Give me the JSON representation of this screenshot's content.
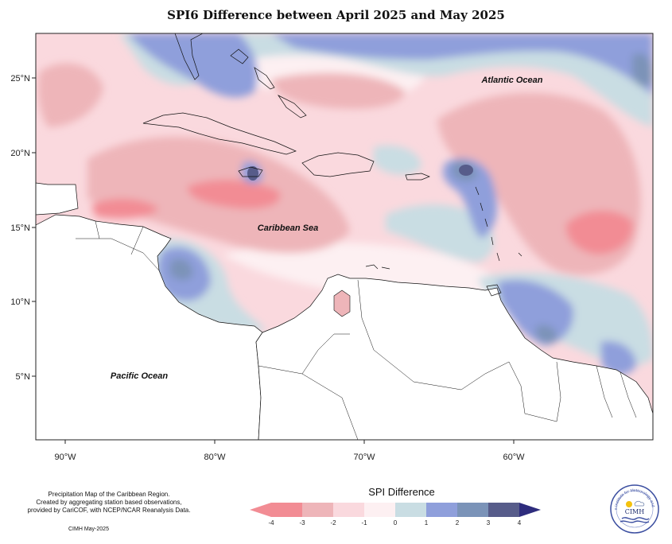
{
  "title": "SPI6 Difference between April 2025 and May 2025",
  "ocean_labels": {
    "atlantic": "Atlantic Ocean",
    "caribbean": "Caribbean Sea",
    "pacific": "Pacific Ocean"
  },
  "axes": {
    "lat_labels": [
      "25°N",
      "20°N",
      "15°N",
      "10°N",
      "5°N"
    ],
    "lon_labels": [
      "90°W",
      "80°W",
      "70°W",
      "60°W"
    ]
  },
  "credit_lines": [
    "Precipitation Map of the Caribbean Region.",
    "Created by aggregating station based observations,",
    "provided by CariCOF, with NCEP/NCAR Reanalysis Data."
  ],
  "date_stamp": "CIMH May-2025",
  "legend": {
    "title": "SPI Difference",
    "ticks": [
      "-4",
      "-3",
      "-2",
      "-1",
      "0",
      "1",
      "2",
      "3",
      "4"
    ],
    "colors": [
      "#f28c94",
      "#eeb5b9",
      "#fad9de",
      "#fdf0f2",
      "#c9dde3",
      "#8f9fdb",
      "#7b93b8",
      "#575c8a",
      "#2e2c7d"
    ]
  },
  "logo": {
    "name": "CIMH",
    "arc_text": "Caribbean Institute for Meteorology and Hydrology"
  },
  "colors": {
    "dry_strong": "#f28c94",
    "dry": "#eeb5b9",
    "dry_light": "#fad9de",
    "near_zero": "#fdf0f2",
    "wet_light": "#c9dde3",
    "wet": "#8f9fdb",
    "wet_strong": "#7b93b8",
    "wet_very": "#575c8a"
  }
}
